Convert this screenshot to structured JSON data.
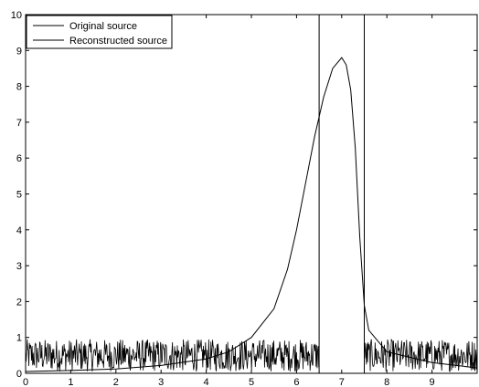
{
  "chart_data": {
    "type": "line",
    "title": "",
    "xlabel": "",
    "ylabel": "",
    "xlim": [
      0,
      10
    ],
    "ylim": [
      0,
      10
    ],
    "x_ticks": [
      0,
      1,
      2,
      3,
      4,
      5,
      6,
      7,
      8,
      9
    ],
    "y_ticks": [
      0,
      1,
      2,
      3,
      4,
      5,
      6,
      7,
      8,
      9,
      10
    ],
    "grid": false,
    "legend_position": "top-left",
    "series": [
      {
        "name": "Original source",
        "color": "#000000",
        "x": [
          0,
          6.5,
          6.5,
          7.5,
          7.5,
          10
        ],
        "y": [
          0,
          0,
          10,
          10,
          0,
          0
        ]
      },
      {
        "name": "Reconstructed source",
        "color": "#000000",
        "baseline_noise": {
          "min": 0.05,
          "max": 0.95
        },
        "x": [
          0,
          1,
          2,
          3,
          4,
          4.5,
          5,
          5.5,
          5.8,
          6,
          6.2,
          6.4,
          6.6,
          6.8,
          7,
          7.1,
          7.2,
          7.3,
          7.4,
          7.5,
          7.6,
          8,
          9,
          10
        ],
        "y": [
          0.05,
          0.08,
          0.12,
          0.22,
          0.4,
          0.6,
          1.0,
          1.8,
          2.9,
          4.0,
          5.3,
          6.6,
          7.7,
          8.5,
          8.8,
          8.6,
          7.9,
          6.3,
          3.8,
          1.9,
          1.2,
          0.6,
          0.3,
          0.15
        ]
      }
    ]
  }
}
